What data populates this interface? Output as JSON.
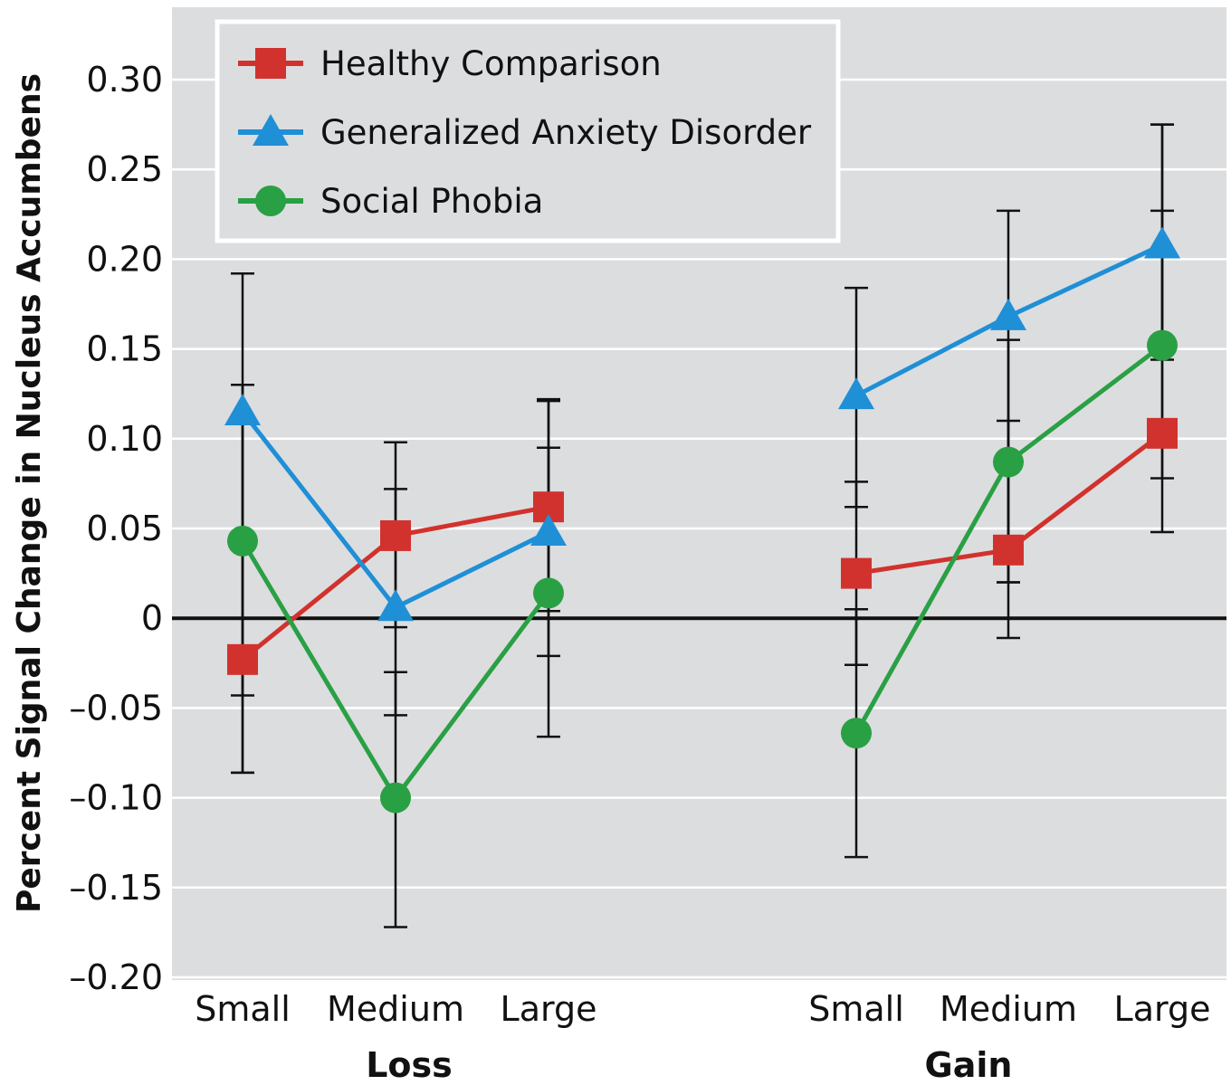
{
  "chart_data": {
    "type": "line",
    "ylabel": "Percent Signal Change in Nucleus Accumbens",
    "ylim": [
      -0.2,
      0.3
    ],
    "yticks": [
      {
        "value": 0.3,
        "label": "0.30"
      },
      {
        "value": 0.25,
        "label": "0.25"
      },
      {
        "value": 0.2,
        "label": "0.20"
      },
      {
        "value": 0.15,
        "label": "0.15"
      },
      {
        "value": 0.1,
        "label": "0.10"
      },
      {
        "value": 0.05,
        "label": "0.05"
      },
      {
        "value": 0.0,
        "label": "0"
      },
      {
        "value": -0.05,
        "label": "–0.05"
      },
      {
        "value": -0.1,
        "label": "–0.10"
      },
      {
        "value": -0.15,
        "label": "–0.15"
      },
      {
        "value": -0.2,
        "label": "–0.20"
      }
    ],
    "groups": [
      {
        "label": "Loss",
        "categories": [
          "Small",
          "Medium",
          "Large"
        ]
      },
      {
        "label": "Gain",
        "categories": [
          "Small",
          "Medium",
          "Large"
        ]
      }
    ],
    "grid": true,
    "legend_position": "top-left",
    "series": [
      {
        "name": "Healthy Comparison",
        "color": "#d2322d",
        "marker": "square",
        "groups": [
          {
            "values": [
              -0.023,
              0.046,
              0.062
            ],
            "err_low": [
              -0.086,
              -0.005,
              0.004
            ],
            "err_high": [
              0.13,
              0.098,
              0.121
            ]
          },
          {
            "values": [
              0.025,
              0.038,
              0.103
            ],
            "err_low": [
              -0.026,
              -0.011,
              0.048
            ],
            "err_high": [
              0.076,
              0.11,
              0.227
            ]
          }
        ]
      },
      {
        "name": "Generalized Anxiety Disorder",
        "color": "#1f8fd6",
        "marker": "triangle",
        "groups": [
          {
            "values": [
              0.115,
              0.006,
              0.048
            ],
            "err_low": [
              -0.043,
              -0.054,
              -0.021
            ],
            "err_high": [
              0.192,
              0.072,
              0.095
            ]
          },
          {
            "values": [
              0.124,
              0.168,
              0.208
            ],
            "err_low": [
              0.062,
              0.02,
              0.144
            ],
            "err_high": [
              0.184,
              0.227,
              0.275
            ]
          }
        ]
      },
      {
        "name": "Social Phobia",
        "color": "#2aa044",
        "marker": "circle",
        "groups": [
          {
            "values": [
              0.043,
              -0.1,
              0.014
            ],
            "err_low": [
              -0.086,
              -0.172,
              -0.066
            ],
            "err_high": [
              0.13,
              -0.03,
              0.122
            ]
          },
          {
            "values": [
              -0.064,
              0.087,
              0.152
            ],
            "err_low": [
              -0.133,
              0.02,
              0.078
            ],
            "err_high": [
              0.005,
              0.155,
              0.275
            ]
          }
        ]
      }
    ]
  }
}
